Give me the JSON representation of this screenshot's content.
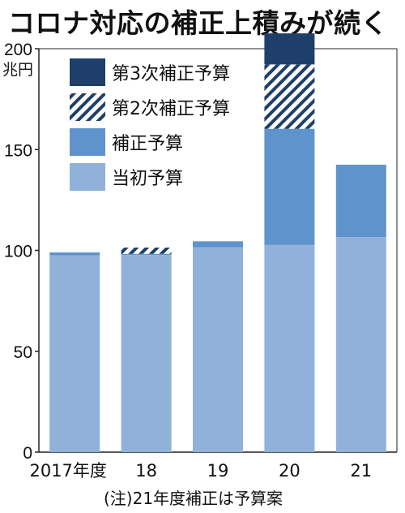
{
  "title": "コロナ対応の補正上積みが続く",
  "note": "(注)21年度補正は予算案",
  "chart_data": {
    "type": "bar",
    "stacked": true,
    "title": "コロナ対応の補正上積みが続く",
    "ylabel": "兆円",
    "ylim": [
      0,
      200
    ],
    "yticks": [
      0,
      50,
      100,
      150,
      200
    ],
    "categories": [
      "2017年度",
      "18",
      "19",
      "20",
      "21"
    ],
    "series": [
      {
        "name": "当初予算",
        "color": "#8fb1da",
        "pattern": "solid",
        "values": [
          97.5,
          97.7,
          101.5,
          102.7,
          106.6
        ]
      },
      {
        "name": "補正予算",
        "color": "#5f93cd",
        "pattern": "solid",
        "values": [
          1.5,
          0.6,
          3.0,
          57.6,
          35.9
        ]
      },
      {
        "name": "第2次補正予算",
        "color": "#1f3f6b",
        "pattern": "hatch",
        "values": [
          0,
          3.1,
          0,
          31.9,
          0
        ]
      },
      {
        "name": "第3次補正予算",
        "color": "#1f3f6b",
        "pattern": "solid",
        "values": [
          0,
          0,
          0,
          15.4,
          0
        ]
      }
    ],
    "legend_position": "top-left",
    "grid": false
  }
}
